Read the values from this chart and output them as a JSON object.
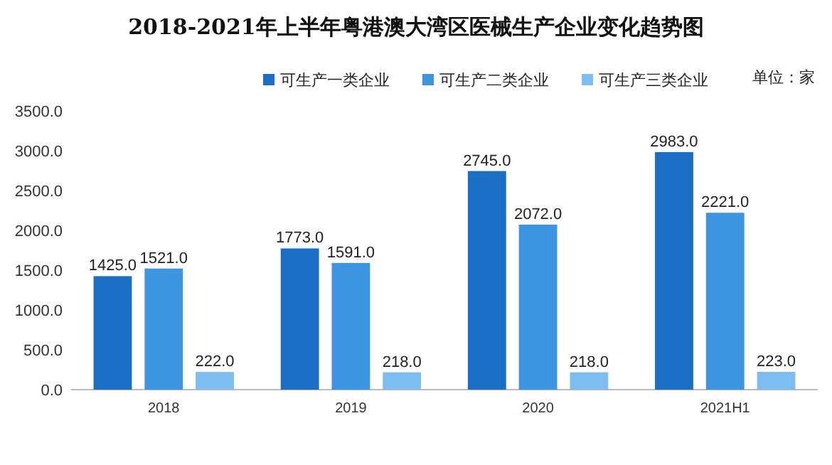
{
  "chart_data": {
    "type": "bar",
    "title": "2018-2021年上半年粤港澳大湾区医械生产企业变化趋势图",
    "categories": [
      "2018",
      "2019",
      "2020",
      "2021H1"
    ],
    "series": [
      {
        "name": "可生产一类企业",
        "color": "#1a6fc4",
        "values": [
          1425,
          1773,
          2745,
          2983
        ],
        "value_labels": [
          "1425.0",
          "1773.0",
          "2745.0",
          "2983.0"
        ]
      },
      {
        "name": "可生产二类企业",
        "color": "#3d94e0",
        "values": [
          1521,
          1591,
          2072,
          2221
        ],
        "value_labels": [
          "1521.0",
          "1591.0",
          "2072.0",
          "2221.0"
        ]
      },
      {
        "name": "可生产三类企业",
        "color": "#7ebdf0",
        "values": [
          222,
          218,
          218,
          223
        ],
        "value_labels": [
          "222.0",
          "218.0",
          "218.0",
          "223.0"
        ]
      }
    ],
    "ylim": [
      0,
      3500
    ],
    "yticks": [
      {
        "value": 0,
        "label": "0.0"
      },
      {
        "value": 500,
        "label": "500.0"
      },
      {
        "value": 1000,
        "label": "1000.0"
      },
      {
        "value": 1500,
        "label": "1500.0"
      },
      {
        "value": 2000,
        "label": "2000.0"
      },
      {
        "value": 2500,
        "label": "2500.0"
      },
      {
        "value": 3000,
        "label": "3000.0"
      },
      {
        "value": 3500,
        "label": "3500.0"
      }
    ],
    "legend": "top right",
    "grid": false,
    "annotations": [
      "单位：家"
    ]
  }
}
